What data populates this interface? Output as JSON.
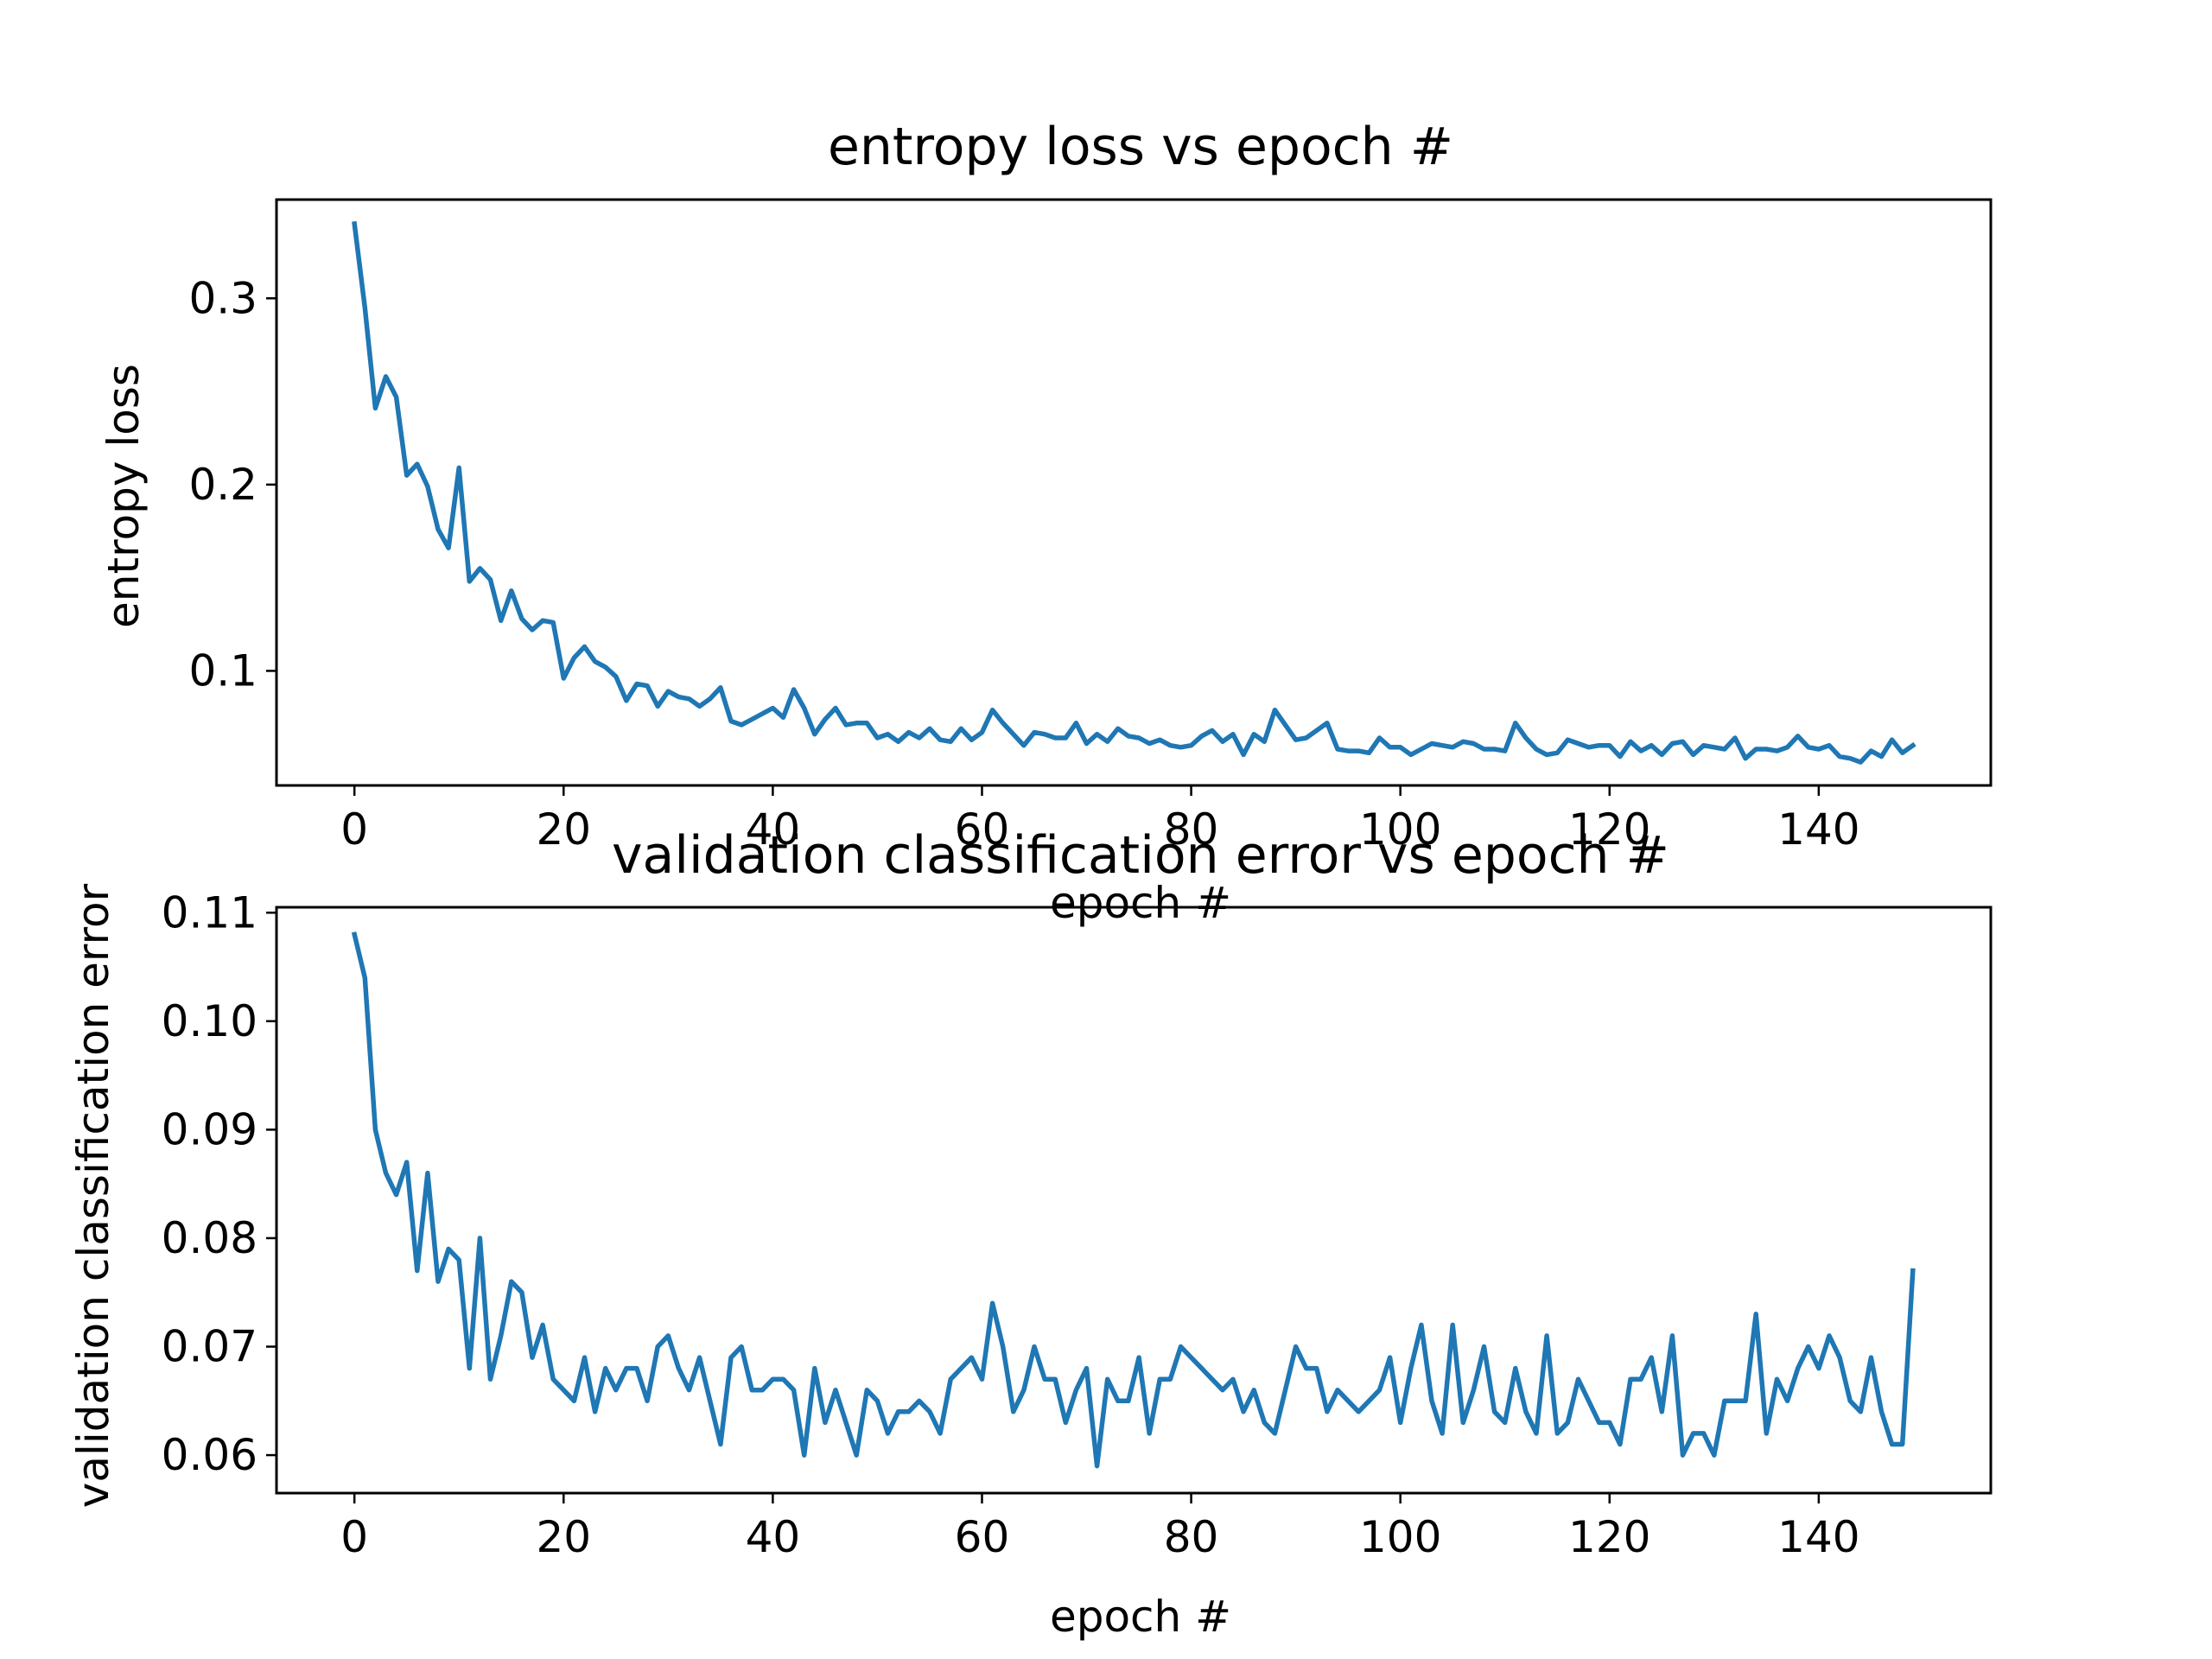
{
  "figure": {
    "background": "#ffffff",
    "line_color": "#1f77b4"
  },
  "chart_data": [
    {
      "type": "line",
      "title": "entropy loss vs epoch #",
      "xlabel": "epoch #",
      "ylabel": "entropy loss",
      "xlim": [
        -7.45,
        156.45
      ],
      "ylim": [
        0.0385,
        0.353
      ],
      "xticks": [
        0,
        20,
        40,
        60,
        80,
        100,
        120,
        140
      ],
      "xtick_labels": [
        "0",
        "20",
        "40",
        "60",
        "80",
        "100",
        "120",
        "140"
      ],
      "yticks": [
        0.1,
        0.2,
        0.3
      ],
      "ytick_labels": [
        "0.1",
        "0.2",
        "0.3"
      ],
      "grid": false,
      "series": [
        {
          "color": "#1f77b4",
          "x": [
            0,
            1,
            2,
            3,
            4,
            5,
            6,
            7,
            8,
            9,
            10,
            11,
            12,
            13,
            14,
            15,
            16,
            17,
            18,
            19,
            20,
            21,
            22,
            23,
            24,
            25,
            26,
            27,
            28,
            29,
            30,
            31,
            32,
            33,
            34,
            35,
            36,
            37,
            38,
            39,
            40,
            41,
            42,
            43,
            44,
            45,
            46,
            47,
            48,
            49,
            50,
            51,
            52,
            53,
            54,
            55,
            56,
            57,
            58,
            59,
            60,
            61,
            62,
            63,
            64,
            65,
            66,
            67,
            68,
            69,
            70,
            71,
            72,
            73,
            74,
            75,
            76,
            77,
            78,
            79,
            80,
            81,
            82,
            83,
            84,
            85,
            86,
            87,
            88,
            89,
            90,
            91,
            92,
            93,
            94,
            95,
            96,
            97,
            98,
            99,
            100,
            101,
            102,
            103,
            104,
            105,
            106,
            107,
            108,
            109,
            110,
            111,
            112,
            113,
            114,
            115,
            116,
            117,
            118,
            119,
            120,
            121,
            122,
            123,
            124,
            125,
            126,
            127,
            128,
            129,
            130,
            131,
            132,
            133,
            134,
            135,
            136,
            137,
            138,
            139,
            140,
            141,
            142,
            143,
            144,
            145,
            146,
            147,
            148,
            149
          ],
          "y": [
            0.34,
            0.295,
            0.241,
            0.258,
            0.247,
            0.205,
            0.211,
            0.199,
            0.176,
            0.166,
            0.209,
            0.148,
            0.155,
            0.149,
            0.127,
            0.143,
            0.128,
            0.122,
            0.127,
            0.126,
            0.096,
            0.107,
            0.113,
            0.105,
            0.102,
            0.097,
            0.084,
            0.093,
            0.092,
            0.081,
            0.089,
            0.086,
            0.085,
            0.081,
            0.085,
            0.091,
            0.073,
            0.071,
            0.074,
            0.077,
            0.08,
            0.075,
            0.09,
            0.08,
            0.066,
            0.074,
            0.08,
            0.071,
            0.072,
            0.072,
            0.064,
            0.066,
            0.062,
            0.067,
            0.064,
            0.069,
            0.063,
            0.062,
            0.069,
            0.063,
            0.067,
            0.079,
            0.072,
            0.066,
            0.06,
            0.067,
            0.066,
            0.064,
            0.064,
            0.072,
            0.061,
            0.066,
            0.062,
            0.069,
            0.065,
            0.064,
            0.061,
            0.063,
            0.06,
            0.059,
            0.06,
            0.065,
            0.068,
            0.062,
            0.066,
            0.055,
            0.066,
            0.062,
            0.079,
            0.071,
            0.063,
            0.064,
            0.068,
            0.072,
            0.058,
            0.057,
            0.057,
            0.056,
            0.064,
            0.059,
            0.059,
            0.055,
            0.058,
            0.061,
            0.06,
            0.059,
            0.062,
            0.061,
            0.058,
            0.058,
            0.057,
            0.072,
            0.064,
            0.058,
            0.055,
            0.056,
            0.063,
            0.061,
            0.059,
            0.06,
            0.06,
            0.054,
            0.062,
            0.057,
            0.06,
            0.055,
            0.061,
            0.062,
            0.055,
            0.06,
            0.059,
            0.058,
            0.064,
            0.053,
            0.058,
            0.058,
            0.057,
            0.059,
            0.065,
            0.059,
            0.058,
            0.06,
            0.054,
            0.053,
            0.051,
            0.057,
            0.054,
            0.063,
            0.056,
            0.06
          ]
        }
      ]
    },
    {
      "type": "line",
      "title": "validation classification error vs epoch #",
      "xlabel": "epoch #",
      "ylabel": "validation classification error",
      "xlim": [
        -7.45,
        156.45
      ],
      "ylim": [
        0.0565,
        0.1105
      ],
      "xticks": [
        0,
        20,
        40,
        60,
        80,
        100,
        120,
        140
      ],
      "xtick_labels": [
        "0",
        "20",
        "40",
        "60",
        "80",
        "100",
        "120",
        "140"
      ],
      "yticks": [
        0.06,
        0.07,
        0.08,
        0.09,
        0.1,
        0.11
      ],
      "ytick_labels": [
        "0.06",
        "0.07",
        "0.08",
        "0.09",
        "0.10",
        "0.11"
      ],
      "grid": false,
      "series": [
        {
          "color": "#1f77b4",
          "x": [
            0,
            1,
            2,
            3,
            4,
            5,
            6,
            7,
            8,
            9,
            10,
            11,
            12,
            13,
            14,
            15,
            16,
            17,
            18,
            19,
            20,
            21,
            22,
            23,
            24,
            25,
            26,
            27,
            28,
            29,
            30,
            31,
            32,
            33,
            34,
            35,
            36,
            37,
            38,
            39,
            40,
            41,
            42,
            43,
            44,
            45,
            46,
            47,
            48,
            49,
            50,
            51,
            52,
            53,
            54,
            55,
            56,
            57,
            58,
            59,
            60,
            61,
            62,
            63,
            64,
            65,
            66,
            67,
            68,
            69,
            70,
            71,
            72,
            73,
            74,
            75,
            76,
            77,
            78,
            79,
            80,
            81,
            82,
            83,
            84,
            85,
            86,
            87,
            88,
            89,
            90,
            91,
            92,
            93,
            94,
            95,
            96,
            97,
            98,
            99,
            100,
            101,
            102,
            103,
            104,
            105,
            106,
            107,
            108,
            109,
            110,
            111,
            112,
            113,
            114,
            115,
            116,
            117,
            118,
            119,
            120,
            121,
            122,
            123,
            124,
            125,
            126,
            127,
            128,
            129,
            130,
            131,
            132,
            133,
            134,
            135,
            136,
            137,
            138,
            139,
            140,
            141,
            142,
            143,
            144,
            145,
            146,
            147,
            148,
            149
          ],
          "y": [
            0.108,
            0.104,
            0.09,
            0.086,
            0.084,
            0.087,
            0.077,
            0.086,
            0.076,
            0.079,
            0.078,
            0.068,
            0.08,
            0.067,
            0.071,
            0.076,
            0.075,
            0.069,
            0.072,
            0.067,
            0.066,
            0.065,
            0.069,
            0.064,
            0.068,
            0.066,
            0.068,
            0.068,
            0.065,
            0.07,
            0.071,
            0.068,
            0.066,
            0.069,
            0.065,
            0.061,
            0.069,
            0.07,
            0.066,
            0.066,
            0.067,
            0.067,
            0.066,
            0.06,
            0.068,
            0.063,
            0.066,
            0.063,
            0.06,
            0.066,
            0.065,
            0.062,
            0.064,
            0.064,
            0.065,
            0.064,
            0.062,
            0.067,
            0.068,
            0.069,
            0.067,
            0.074,
            0.07,
            0.064,
            0.066,
            0.07,
            0.067,
            0.067,
            0.063,
            0.066,
            0.068,
            0.059,
            0.067,
            0.065,
            0.065,
            0.069,
            0.062,
            0.067,
            0.067,
            0.07,
            0.069,
            0.068,
            0.067,
            0.066,
            0.067,
            0.064,
            0.066,
            0.063,
            0.062,
            0.066,
            0.07,
            0.068,
            0.068,
            0.064,
            0.066,
            0.065,
            0.064,
            0.065,
            0.066,
            0.069,
            0.063,
            0.068,
            0.072,
            0.065,
            0.062,
            0.072,
            0.063,
            0.066,
            0.07,
            0.064,
            0.063,
            0.068,
            0.064,
            0.062,
            0.071,
            0.062,
            0.063,
            0.067,
            0.065,
            0.063,
            0.063,
            0.061,
            0.067,
            0.067,
            0.069,
            0.064,
            0.071,
            0.06,
            0.062,
            0.062,
            0.06,
            0.065,
            0.065,
            0.065,
            0.073,
            0.062,
            0.067,
            0.065,
            0.068,
            0.07,
            0.068,
            0.071,
            0.069,
            0.065,
            0.064,
            0.069,
            0.064,
            0.061,
            0.061,
            0.077
          ]
        }
      ]
    }
  ]
}
